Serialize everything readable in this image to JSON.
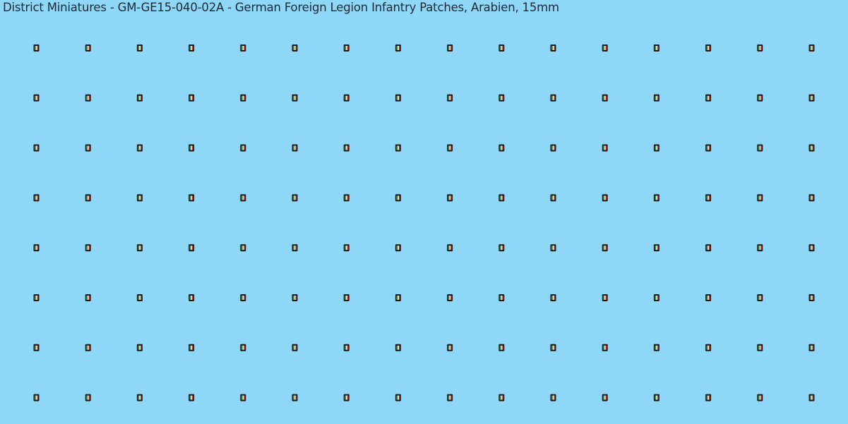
{
  "header": {
    "title": "District Miniatures - GM-GE15-040-02A - German Foreign Legion Infantry Patches, Arabien, 15mm"
  }
}
